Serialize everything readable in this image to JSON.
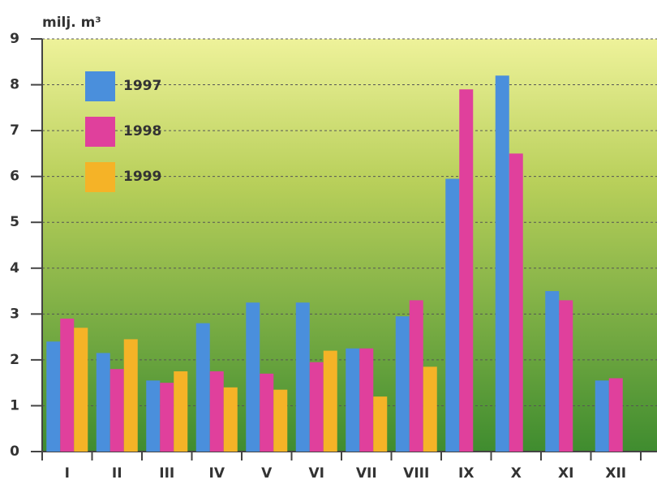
{
  "chart_data": {
    "type": "bar",
    "y_label": "milj. m³",
    "categories": [
      "I",
      "II",
      "III",
      "IV",
      "V",
      "VI",
      "VII",
      "VIII",
      "IX",
      "X",
      "XI",
      "XII"
    ],
    "series": [
      {
        "name": "1997",
        "color": "#4a8fdc",
        "values": [
          2.4,
          2.15,
          1.55,
          2.8,
          3.25,
          3.25,
          2.25,
          2.95,
          5.95,
          8.2,
          3.5,
          1.55
        ]
      },
      {
        "name": "1998",
        "color": "#e0409c",
        "values": [
          2.9,
          1.8,
          1.5,
          1.75,
          1.7,
          1.95,
          2.25,
          3.3,
          7.9,
          6.5,
          3.3,
          1.6
        ]
      },
      {
        "name": "1999",
        "color": "#f5b327",
        "values": [
          2.7,
          2.45,
          1.75,
          1.4,
          1.35,
          2.2,
          1.2,
          1.85,
          null,
          null,
          null,
          null
        ]
      }
    ],
    "ylim": [
      0,
      9
    ],
    "yticks": [
      0,
      1,
      2,
      3,
      4,
      5,
      6,
      7,
      8,
      9
    ],
    "grid": true
  }
}
